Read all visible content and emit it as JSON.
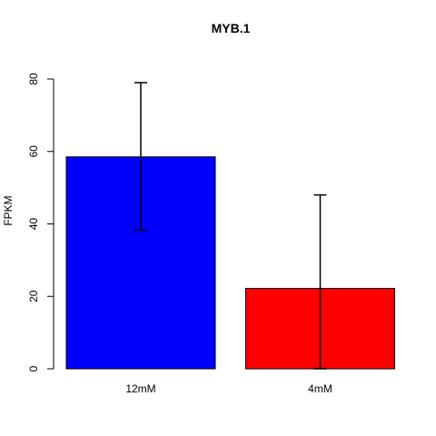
{
  "chart_data": {
    "type": "bar",
    "title": "MYB.1",
    "xlabel": "",
    "ylabel": "FPKM",
    "categories": [
      "12mM",
      "4mM"
    ],
    "values": [
      58.5,
      22.2
    ],
    "error_low": [
      38.3,
      0
    ],
    "error_high": [
      79.0,
      48.0
    ],
    "colors": [
      "#0000ff",
      "#ff0000"
    ],
    "ylim": [
      0,
      80
    ],
    "yticks": [
      0,
      20,
      40,
      60,
      80
    ],
    "grid": false,
    "legend": "none"
  }
}
